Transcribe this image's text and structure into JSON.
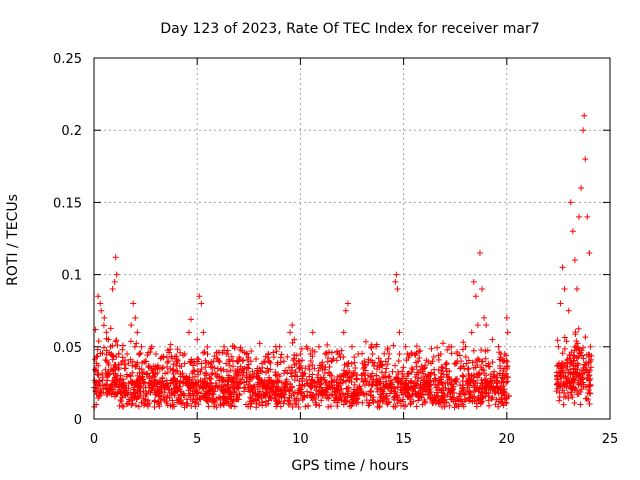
{
  "chart_data": {
    "type": "scatter",
    "title": "Day 123 of 2023, Rate Of TEC Index for receiver mar7",
    "xlabel": "GPS time / hours",
    "ylabel": "ROTI / TECUs",
    "xlim": [
      0,
      25
    ],
    "ylim": [
      0,
      0.25
    ],
    "xticks": [
      0,
      5,
      10,
      15,
      20,
      25
    ],
    "xtick_labels": [
      "0",
      "5",
      "10",
      "15",
      "20",
      "25"
    ],
    "yticks": [
      0,
      0.05,
      0.1,
      0.15,
      0.2,
      0.25
    ],
    "ytick_labels": [
      "0",
      "0.05",
      "0.1",
      "0.15",
      "0.2",
      "0.25"
    ],
    "grid": true,
    "marker": "+",
    "marker_color": "#ff0000",
    "data_gap_hours": [
      20.1,
      22.4
    ],
    "series": [
      {
        "points": [
          [
            0.1,
            0.02
          ],
          [
            0.2,
            0.085
          ],
          [
            0.3,
            0.08
          ],
          [
            0.35,
            0.075
          ],
          [
            0.5,
            0.07
          ],
          [
            0.6,
            0.06
          ],
          [
            0.7,
            0.055
          ],
          [
            0.8,
            0.05
          ],
          [
            0.9,
            0.09
          ],
          [
            1.0,
            0.095
          ],
          [
            1.05,
            0.112
          ],
          [
            1.1,
            0.1
          ],
          [
            1.2,
            0.045
          ],
          [
            1.4,
            0.04
          ],
          [
            1.6,
            0.045
          ],
          [
            1.8,
            0.065
          ],
          [
            1.9,
            0.08
          ],
          [
            2.0,
            0.07
          ],
          [
            2.1,
            0.06
          ],
          [
            2.3,
            0.05
          ],
          [
            2.5,
            0.04
          ],
          [
            2.8,
            0.05
          ],
          [
            3.0,
            0.045
          ],
          [
            3.3,
            0.035
          ],
          [
            3.6,
            0.04
          ],
          [
            4.0,
            0.04
          ],
          [
            4.4,
            0.045
          ],
          [
            4.6,
            0.06
          ],
          [
            4.7,
            0.069
          ],
          [
            5.0,
            0.055
          ],
          [
            5.1,
            0.085
          ],
          [
            5.2,
            0.08
          ],
          [
            5.3,
            0.06
          ],
          [
            5.5,
            0.045
          ],
          [
            5.8,
            0.04
          ],
          [
            6.0,
            0.035
          ],
          [
            6.3,
            0.05
          ],
          [
            6.5,
            0.045
          ],
          [
            6.8,
            0.05
          ],
          [
            7.0,
            0.04
          ],
          [
            7.3,
            0.035
          ],
          [
            7.6,
            0.04
          ],
          [
            8.0,
            0.035
          ],
          [
            8.4,
            0.035
          ],
          [
            8.8,
            0.03
          ],
          [
            9.2,
            0.04
          ],
          [
            9.5,
            0.06
          ],
          [
            9.6,
            0.065
          ],
          [
            9.7,
            0.055
          ],
          [
            10.0,
            0.045
          ],
          [
            10.3,
            0.05
          ],
          [
            10.6,
            0.06
          ],
          [
            10.9,
            0.05
          ],
          [
            11.2,
            0.045
          ],
          [
            11.5,
            0.04
          ],
          [
            11.9,
            0.045
          ],
          [
            12.1,
            0.06
          ],
          [
            12.2,
            0.075
          ],
          [
            12.3,
            0.08
          ],
          [
            12.5,
            0.05
          ],
          [
            12.8,
            0.045
          ],
          [
            13.1,
            0.04
          ],
          [
            13.5,
            0.045
          ],
          [
            13.9,
            0.04
          ],
          [
            14.3,
            0.045
          ],
          [
            14.6,
            0.095
          ],
          [
            14.65,
            0.1
          ],
          [
            14.7,
            0.09
          ],
          [
            14.8,
            0.06
          ],
          [
            15.1,
            0.05
          ],
          [
            15.4,
            0.045
          ],
          [
            15.7,
            0.04
          ],
          [
            16.0,
            0.035
          ],
          [
            16.4,
            0.04
          ],
          [
            16.8,
            0.045
          ],
          [
            17.2,
            0.05
          ],
          [
            17.6,
            0.045
          ],
          [
            18.0,
            0.05
          ],
          [
            18.3,
            0.06
          ],
          [
            18.4,
            0.095
          ],
          [
            18.5,
            0.085
          ],
          [
            18.6,
            0.065
          ],
          [
            18.7,
            0.115
          ],
          [
            18.8,
            0.09
          ],
          [
            18.9,
            0.07
          ],
          [
            19.0,
            0.065
          ],
          [
            19.3,
            0.055
          ],
          [
            19.6,
            0.05
          ],
          [
            19.9,
            0.045
          ],
          [
            20.0,
            0.07
          ],
          [
            20.05,
            0.06
          ],
          [
            22.5,
            0.05
          ],
          [
            22.6,
            0.08
          ],
          [
            22.7,
            0.105
          ],
          [
            22.8,
            0.09
          ],
          [
            23.0,
            0.075
          ],
          [
            23.1,
            0.15
          ],
          [
            23.2,
            0.13
          ],
          [
            23.3,
            0.11
          ],
          [
            23.4,
            0.09
          ],
          [
            23.5,
            0.14
          ],
          [
            23.6,
            0.16
          ],
          [
            23.7,
            0.2
          ],
          [
            23.75,
            0.21
          ],
          [
            23.8,
            0.18
          ],
          [
            23.9,
            0.14
          ],
          [
            24.0,
            0.115
          ],
          [
            24.05,
            0.05
          ]
        ]
      }
    ]
  }
}
